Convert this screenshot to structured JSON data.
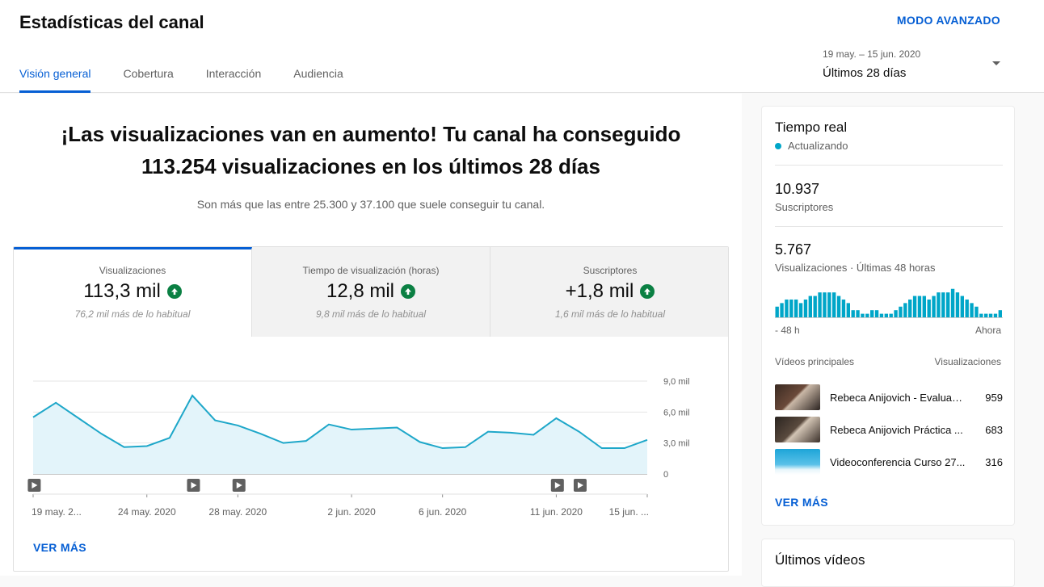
{
  "header": {
    "title": "Estadísticas del canal",
    "advanced_mode": "MODO AVANZADO",
    "tabs": [
      "Visión general",
      "Cobertura",
      "Interacción",
      "Audiencia"
    ],
    "active_tab": 0,
    "range_dates": "19 may. – 15 jun. 2020",
    "range_label": "Últimos 28 días"
  },
  "summary": {
    "headline_line1": "¡Las visualizaciones van en aumento! Tu canal ha conseguido",
    "headline_line2": "113.254 visualizaciones en los últimos 28 días",
    "subline": "Son más que las entre 25.300 y 37.100 que suele conseguir tu canal."
  },
  "metrics": [
    {
      "label": "Visualizaciones",
      "value": "113,3 mil",
      "note": "76,2 mil más de lo habitual"
    },
    {
      "label": "Tiempo de visualización (horas)",
      "value": "12,8 mil",
      "note": "9,8 mil más de lo habitual"
    },
    {
      "label": "Suscriptores",
      "value": "+1,8 mil",
      "note": "1,6 mil más de lo habitual"
    }
  ],
  "chart_data": {
    "type": "area",
    "title": "",
    "xlabel": "",
    "ylabel": "",
    "x_tick_labels": [
      "19 may. 2...",
      "24 may. 2020",
      "28 may. 2020",
      "2 jun. 2020",
      "6 jun. 2020",
      "11 jun. 2020",
      "15 jun. ..."
    ],
    "y_tick_labels": [
      "9,0 mil",
      "6,0 mil",
      "3,0 mil",
      "0"
    ],
    "ylim": [
      0,
      9000
    ],
    "grid": true,
    "series": [
      {
        "x": [
          "19 may.",
          "20 may.",
          "21 may.",
          "22 may.",
          "23 may.",
          "24 may.",
          "25 may.",
          "26 may.",
          "27 may.",
          "28 may.",
          "29 may.",
          "30 may.",
          "31 may.",
          "1 jun.",
          "2 jun.",
          "3 jun.",
          "4 jun.",
          "5 jun.",
          "6 jun.",
          "7 jun.",
          "8 jun.",
          "9 jun.",
          "10 jun.",
          "11 jun.",
          "12 jun.",
          "13 jun.",
          "14 jun.",
          "15 jun."
        ],
        "values": [
          5500,
          6900,
          5400,
          3900,
          2600,
          2700,
          3500,
          7600,
          5200,
          4700,
          3900,
          3000,
          3200,
          4800,
          4300,
          4400,
          4500,
          3100,
          2500,
          2600,
          4100,
          4000,
          3800,
          5400,
          4100,
          2500,
          2500,
          3300
        ]
      }
    ],
    "markers_at_days": [
      1,
      8,
      10,
      24,
      25
    ]
  },
  "view_more": "VER MÁS",
  "realtime": {
    "title": "Tiempo real",
    "status": "Actualizando",
    "subscribers": "10.937",
    "subscribers_label": "Suscriptores",
    "views": "5.767",
    "views_label": "Visualizaciones · Últimas 48 horas",
    "axis_left": "- 48 h",
    "axis_right": "Ahora",
    "bars": [
      3,
      4,
      5,
      5,
      5,
      4,
      5,
      6,
      6,
      7,
      7,
      7,
      7,
      6,
      5,
      4,
      2,
      2,
      1,
      1,
      2,
      2,
      1,
      1,
      1,
      2,
      3,
      4,
      5,
      6,
      6,
      6,
      5,
      6,
      7,
      7,
      7,
      8,
      7,
      6,
      5,
      4,
      3,
      1,
      1,
      1,
      1,
      2
    ],
    "top_videos_label": "Vídeos principales",
    "views_col_label": "Visualizaciones",
    "videos": [
      {
        "title": "Rebeca Anijovich - Evaluación...",
        "views": "959"
      },
      {
        "title": "Rebeca Anijovich Práctica ...",
        "views": "683"
      },
      {
        "title": "Videoconferencia Curso 27...",
        "views": "316"
      }
    ],
    "view_more": "VER MÁS"
  },
  "latest": {
    "title": "Últimos vídeos"
  },
  "colors": {
    "accent": "#065fd4",
    "chart_line": "#1ea7c9",
    "chart_fill": "#e3f4fa",
    "up_badge": "#0b8043"
  }
}
